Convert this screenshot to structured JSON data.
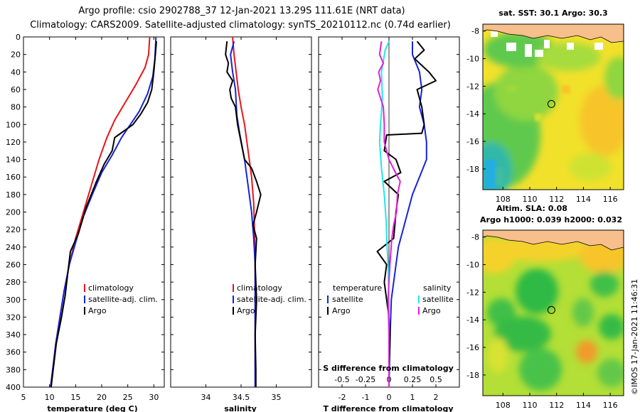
{
  "title": {
    "line1": "Argo profile: csio 2902788_37 12-Jan-2021 13.29S 111.61E (NRT data)",
    "line2": "Climatology: CARS2009. Satellite-adjusted climatology: synTS_20210112.nc (0.74d earlier)"
  },
  "credit": "©IMOS 17-Jan-2021 11:46:31",
  "colors": {
    "red": "#e8141a",
    "blue": "#1423d8",
    "black": "#000000",
    "cyan": "#22e5ee",
    "magenta": "#e020d8"
  },
  "chart_data": [
    {
      "type": "line",
      "name": "temperature-panel",
      "xlabel": "temperature (deg C)",
      "xlim": [
        5,
        32
      ],
      "ylim": [
        400,
        0
      ],
      "xticks": [
        5,
        10,
        15,
        20,
        25,
        30
      ],
      "yticks": [
        0,
        20,
        40,
        60,
        80,
        100,
        120,
        140,
        160,
        180,
        200,
        220,
        240,
        260,
        280,
        300,
        320,
        340,
        360,
        380,
        400
      ],
      "legend": {
        "placement": "bottom-right",
        "entries": [
          "climatology",
          "satellite-adj. clim.",
          "Argo"
        ]
      },
      "series": [
        {
          "name": "climatology",
          "color": "red",
          "points": [
            [
              29.2,
              0
            ],
            [
              29.0,
              20
            ],
            [
              28.3,
              35
            ],
            [
              26.5,
              55
            ],
            [
              24.5,
              75
            ],
            [
              22.5,
              95
            ],
            [
              21.0,
              115
            ],
            [
              19.5,
              140
            ],
            [
              18.0,
              170
            ],
            [
              16.5,
              200
            ],
            [
              15.0,
              230
            ],
            [
              13.8,
              260
            ],
            [
              12.8,
              290
            ],
            [
              12.0,
              320
            ],
            [
              11.2,
              350
            ],
            [
              10.6,
              380
            ],
            [
              10.2,
              400
            ]
          ]
        },
        {
          "name": "satellite-adj. clim.",
          "color": "blue",
          "points": [
            [
              30.4,
              0
            ],
            [
              30.2,
              25
            ],
            [
              29.8,
              45
            ],
            [
              28.8,
              65
            ],
            [
              27.2,
              85
            ],
            [
              25.5,
              100
            ],
            [
              23.8,
              115
            ],
            [
              22.0,
              135
            ],
            [
              20.0,
              155
            ],
            [
              18.2,
              180
            ],
            [
              16.5,
              205
            ],
            [
              15.0,
              235
            ],
            [
              13.8,
              260
            ],
            [
              12.8,
              290
            ],
            [
              12.0,
              320
            ],
            [
              11.2,
              350
            ],
            [
              10.6,
              380
            ],
            [
              10.2,
              400
            ]
          ]
        },
        {
          "name": "Argo",
          "color": "black",
          "points": [
            [
              30.5,
              5
            ],
            [
              30.3,
              20
            ],
            [
              30.0,
              40
            ],
            [
              29.6,
              60
            ],
            [
              28.8,
              75
            ],
            [
              27.5,
              88
            ],
            [
              26.0,
              100
            ],
            [
              23.2,
              112
            ],
            [
              22.5,
              115
            ],
            [
              22.0,
              130
            ],
            [
              20.5,
              145
            ],
            [
              19.0,
              165
            ],
            [
              18.0,
              180
            ],
            [
              17.0,
              195
            ],
            [
              15.5,
              225
            ],
            [
              14.0,
              245
            ],
            [
              13.5,
              270
            ],
            [
              13.0,
              295
            ],
            [
              12.3,
              320
            ],
            [
              11.3,
              350
            ],
            [
              10.7,
              380
            ],
            [
              10.3,
              400
            ]
          ]
        }
      ]
    },
    {
      "type": "line",
      "name": "salinity-panel",
      "xlabel": "salinity",
      "xlim": [
        33.5,
        35.5
      ],
      "ylim": [
        400,
        0
      ],
      "xticks": [
        34,
        34.5,
        35
      ],
      "tick_labels": [
        "34",
        "34.5",
        "35"
      ],
      "legend": {
        "placement": "bottom-right",
        "entries": [
          "climatology",
          "satellite-adj. clim.",
          "Argo"
        ]
      },
      "series": [
        {
          "name": "climatology",
          "color": "red",
          "points": [
            [
              34.38,
              0
            ],
            [
              34.4,
              20
            ],
            [
              34.43,
              40
            ],
            [
              34.46,
              60
            ],
            [
              34.5,
              80
            ],
            [
              34.55,
              100
            ],
            [
              34.6,
              130
            ],
            [
              34.65,
              160
            ],
            [
              34.68,
              190
            ],
            [
              34.69,
              220
            ],
            [
              34.7,
              260
            ],
            [
              34.7,
              320
            ],
            [
              34.7,
              400
            ]
          ]
        },
        {
          "name": "satellite-adj. clim.",
          "color": "blue",
          "points": [
            [
              34.4,
              5
            ],
            [
              34.35,
              20
            ],
            [
              34.38,
              40
            ],
            [
              34.42,
              60
            ],
            [
              34.44,
              90
            ],
            [
              34.48,
              110
            ],
            [
              34.55,
              140
            ],
            [
              34.6,
              170
            ],
            [
              34.65,
              200
            ],
            [
              34.68,
              230
            ],
            [
              34.7,
              260
            ],
            [
              34.7,
              320
            ],
            [
              34.7,
              400
            ]
          ]
        },
        {
          "name": "Argo",
          "color": "black",
          "points": [
            [
              34.3,
              5
            ],
            [
              34.28,
              20
            ],
            [
              34.32,
              30
            ],
            [
              34.3,
              40
            ],
            [
              34.38,
              50
            ],
            [
              34.34,
              60
            ],
            [
              34.36,
              70
            ],
            [
              34.42,
              80
            ],
            [
              34.45,
              100
            ],
            [
              34.5,
              120
            ],
            [
              34.55,
              140
            ],
            [
              34.65,
              150
            ],
            [
              34.72,
              165
            ],
            [
              34.78,
              180
            ],
            [
              34.72,
              200
            ],
            [
              34.67,
              215
            ],
            [
              34.72,
              230
            ],
            [
              34.7,
              260
            ],
            [
              34.72,
              300
            ],
            [
              34.7,
              340
            ],
            [
              34.71,
              380
            ],
            [
              34.71,
              400
            ]
          ]
        }
      ]
    },
    {
      "type": "line",
      "name": "difference-panel",
      "xlabel": "T difference from climatology",
      "top_axis_label": "S difference from climatology",
      "xlim": [
        -3,
        3
      ],
      "ylim": [
        400,
        0
      ],
      "xticks": [
        -2,
        -1,
        0,
        1,
        2
      ],
      "top_ticks": [
        -0.5,
        -0.25,
        0,
        0.25,
        0.5
      ],
      "top_tick_labels": [
        "-0.5",
        "-0.25",
        "0",
        "0.25",
        "0.5"
      ],
      "legend": {
        "placement": "bottom",
        "temperature": {
          "heading": "temperature",
          "entries": [
            "satellite",
            "Argo"
          ]
        },
        "salinity": {
          "heading": "salinity",
          "entries": [
            "satellite",
            "Argo"
          ]
        }
      },
      "series": [
        {
          "name": "T satellite",
          "color": "blue",
          "points": [
            [
              1.0,
              5
            ],
            [
              1.0,
              20
            ],
            [
              1.3,
              40
            ],
            [
              1.4,
              60
            ],
            [
              1.3,
              80
            ],
            [
              1.5,
              100
            ],
            [
              1.6,
              120
            ],
            [
              1.6,
              140
            ],
            [
              1.3,
              160
            ],
            [
              1.0,
              180
            ],
            [
              0.8,
              200
            ],
            [
              0.6,
              220
            ],
            [
              0.4,
              240
            ],
            [
              0.3,
              260
            ],
            [
              0.2,
              280
            ],
            [
              0.1,
              300
            ],
            [
              0.05,
              340
            ],
            [
              0.0,
              400
            ]
          ]
        },
        {
          "name": "T Argo",
          "color": "black",
          "points": [
            [
              1.2,
              5
            ],
            [
              1.5,
              15
            ],
            [
              1.1,
              25
            ],
            [
              1.3,
              30
            ],
            [
              1.7,
              40
            ],
            [
              2.0,
              50
            ],
            [
              1.2,
              60
            ],
            [
              1.4,
              80
            ],
            [
              1.5,
              100
            ],
            [
              1.4,
              110
            ],
            [
              -0.1,
              112
            ],
            [
              -0.2,
              130
            ],
            [
              0.3,
              140
            ],
            [
              0.5,
              155
            ],
            [
              -0.2,
              165
            ],
            [
              0.4,
              180
            ],
            [
              0.3,
              200
            ],
            [
              0.2,
              230
            ],
            [
              -0.5,
              245
            ],
            [
              -0.1,
              260
            ],
            [
              -0.2,
              280
            ],
            [
              -0.1,
              300
            ],
            [
              0.0,
              320
            ],
            [
              0.05,
              340
            ],
            [
              0.0,
              380
            ],
            [
              0.0,
              400
            ]
          ]
        },
        {
          "name": "S satellite",
          "color": "cyan",
          "points": [
            [
              0.0,
              5
            ],
            [
              -0.04,
              15
            ],
            [
              -0.08,
              40
            ],
            [
              -0.07,
              70
            ],
            [
              -0.09,
              100
            ],
            [
              -0.1,
              120
            ],
            [
              -0.08,
              150
            ],
            [
              -0.05,
              180
            ],
            [
              -0.03,
              210
            ],
            [
              -0.02,
              240
            ],
            [
              -0.01,
              260
            ],
            [
              0.0,
              300
            ],
            [
              0.0,
              340
            ],
            [
              0.0,
              400
            ]
          ]
        },
        {
          "name": "S Argo",
          "color": "magenta",
          "points": [
            [
              -0.08,
              5
            ],
            [
              -0.1,
              20
            ],
            [
              -0.06,
              30
            ],
            [
              -0.11,
              40
            ],
            [
              -0.09,
              50
            ],
            [
              -0.12,
              60
            ],
            [
              -0.06,
              80
            ],
            [
              -0.05,
              100
            ],
            [
              -0.05,
              120
            ],
            [
              0.0,
              140
            ],
            [
              0.07,
              155
            ],
            [
              0.12,
              165
            ],
            [
              0.09,
              180
            ],
            [
              0.08,
              200
            ],
            [
              0.05,
              215
            ],
            [
              0.03,
              230
            ],
            [
              0.01,
              260
            ],
            [
              -0.01,
              300
            ],
            [
              0.0,
              340
            ],
            [
              0.0,
              400
            ]
          ]
        }
      ]
    },
    {
      "type": "heatmap",
      "name": "sst-map",
      "title": "sat. SST: 30.1 Argo: 30.3",
      "xlim": [
        106.5,
        117
      ],
      "ylim": [
        -19.5,
        -7.5
      ],
      "xticks": [
        108,
        110,
        112,
        114,
        116
      ],
      "yticks": [
        -8,
        -10,
        -12,
        -14,
        -16,
        -18
      ],
      "argo_position": [
        111.61,
        -13.29
      ]
    },
    {
      "type": "heatmap",
      "name": "sla-map",
      "title_line1": "Altim. SLA: 0.08",
      "title_line2": "Argo h1000: 0.039 h2000: 0.032",
      "xlim": [
        106.5,
        117
      ],
      "ylim": [
        -19.5,
        -7.5
      ],
      "xticks": [
        108,
        110,
        112,
        114,
        116
      ],
      "yticks": [
        -8,
        -10,
        -12,
        -14,
        -16,
        -18
      ],
      "argo_position": [
        111.61,
        -13.29
      ]
    }
  ]
}
